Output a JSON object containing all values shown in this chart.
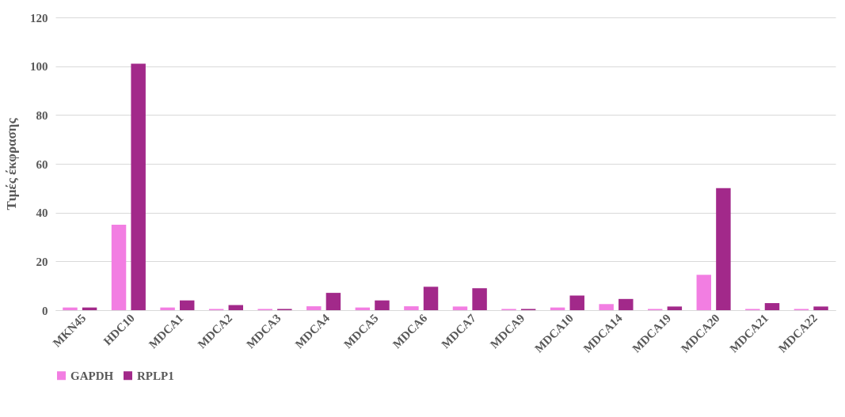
{
  "chart_data": {
    "type": "bar",
    "ylabel": "Τιμές έκφρασης",
    "categories": [
      "MKN45",
      "HDC10",
      "MDCA1",
      "MDCA2",
      "MDCA3",
      "MDCA4",
      "MDCA5",
      "MDCA6",
      "MDCA7",
      "MDCA9",
      "MDCA10",
      "MDCA14",
      "MDCA19",
      "MDCA20",
      "MDCA21",
      "MDCA22"
    ],
    "series": [
      {
        "name": "GAPDH",
        "color": "#f27ee2",
        "values": [
          1.1,
          35,
          1.1,
          0.5,
          0.5,
          1.6,
          1.1,
          1.6,
          1.5,
          0.5,
          1.1,
          2.5,
          0.5,
          14.5,
          0.5,
          0.5
        ]
      },
      {
        "name": "RPLP1",
        "color": "#a2298a",
        "values": [
          1.1,
          101,
          4.0,
          2.1,
          0.5,
          7.1,
          4.0,
          9.6,
          9.0,
          0.5,
          6.0,
          4.6,
          1.5,
          50,
          2.9,
          1.5
        ]
      }
    ],
    "ylim": [
      0,
      120
    ],
    "yticks": [
      0,
      20,
      40,
      60,
      80,
      100,
      120
    ],
    "grid": "y",
    "legend": "bottom"
  }
}
